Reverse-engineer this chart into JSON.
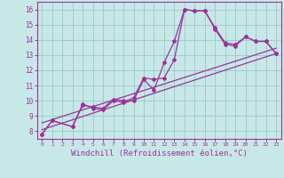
{
  "background_color": "#c8e8e8",
  "line_color": "#993399",
  "grid_color": "#a0cccc",
  "xlabel": "Windchill (Refroidissement éolien,°C)",
  "xlabel_fontsize": 6.5,
  "ylim": [
    7.5,
    16.5
  ],
  "xlim": [
    -0.5,
    23.5
  ],
  "yticks": [
    8,
    9,
    10,
    11,
    12,
    13,
    14,
    15,
    16
  ],
  "xticks": [
    0,
    1,
    2,
    3,
    4,
    5,
    6,
    7,
    8,
    9,
    10,
    11,
    12,
    13,
    14,
    15,
    16,
    17,
    18,
    19,
    20,
    21,
    22,
    23
  ],
  "series1_x": [
    0,
    1,
    3,
    4,
    5,
    6,
    7,
    8,
    9,
    10,
    11,
    12,
    13,
    14,
    15,
    16,
    17,
    18,
    19,
    20,
    21,
    22,
    23
  ],
  "series1_y": [
    7.8,
    8.7,
    8.3,
    9.7,
    9.6,
    9.5,
    10.1,
    10.0,
    10.0,
    11.4,
    10.7,
    12.5,
    13.9,
    16.0,
    15.9,
    15.9,
    14.7,
    13.7,
    13.6,
    14.2,
    13.9,
    13.9,
    13.1
  ],
  "series2_x": [
    0,
    1,
    3,
    4,
    5,
    6,
    7,
    8,
    9,
    10,
    11,
    12,
    13,
    14,
    15,
    16,
    17,
    18,
    19,
    20,
    21,
    22,
    23
  ],
  "series2_y": [
    7.8,
    8.7,
    8.3,
    9.8,
    9.5,
    9.4,
    10.0,
    9.9,
    10.2,
    11.5,
    11.4,
    11.5,
    12.7,
    16.0,
    15.9,
    15.9,
    14.8,
    13.8,
    13.7,
    14.2,
    13.9,
    13.9,
    13.1
  ],
  "trend1_x": [
    0,
    23
  ],
  "trend1_y": [
    8.1,
    13.1
  ],
  "trend2_x": [
    0,
    23
  ],
  "trend2_y": [
    8.55,
    13.45
  ]
}
